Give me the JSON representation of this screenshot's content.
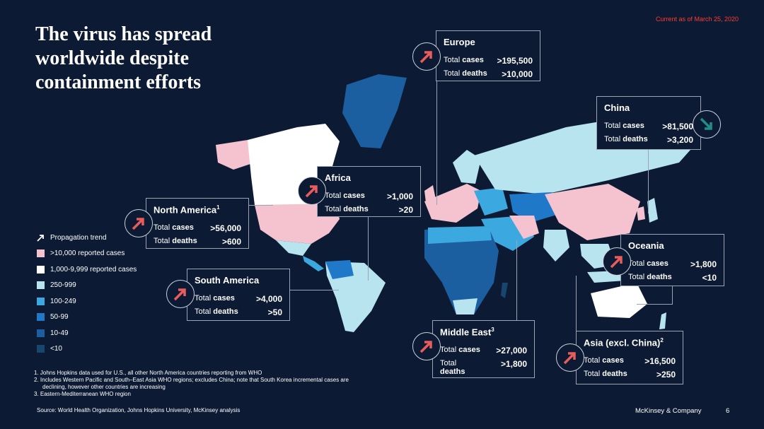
{
  "date_label": "Current as of March 25, 2020",
  "title": "The virus has spread worldwide despite containment efforts",
  "colors": {
    "background": "#0c1b33",
    "over_10000": "#f5c3cf",
    "range_1000_9999": "#ffffff",
    "range_250_999": "#b7e4ef",
    "range_100_249": "#3ba8e0",
    "range_50_99": "#1f78c8",
    "range_10_49": "#1b5fa0",
    "under_10": "#17466e",
    "up_arrow": "#e85c5c",
    "down_arrow": "#1f8f86"
  },
  "regions": {
    "europe": {
      "name": "Europe",
      "cases_prefix": "Total ",
      "cases_label": "cases",
      "cases_value": ">195,500",
      "deaths_prefix": "Total ",
      "deaths_label": "deaths",
      "deaths_value": ">10,000",
      "trend_icon": "arrow-up-icon"
    },
    "china": {
      "name": "China",
      "cases_prefix": "Total ",
      "cases_label": "cases",
      "cases_value": ">81,500",
      "deaths_prefix": "Total ",
      "deaths_label": "deaths",
      "deaths_value": ">3,200",
      "trend_icon": "arrow-down-icon"
    },
    "africa": {
      "name": "Africa",
      "cases_prefix": "Total ",
      "cases_label": "cases",
      "cases_value": ">1,000",
      "deaths_prefix": "Total ",
      "deaths_label": "deaths",
      "deaths_value": ">20",
      "trend_icon": "arrow-up-icon"
    },
    "north_america": {
      "name": "North America",
      "sup": "1",
      "cases_prefix": "Total ",
      "cases_label": "cases",
      "cases_value": ">56,000",
      "deaths_prefix": "Total ",
      "deaths_label": "deaths",
      "deaths_value": ">600",
      "trend_icon": "arrow-up-icon"
    },
    "south_america": {
      "name": "South America",
      "cases_prefix": "Total ",
      "cases_label": "cases",
      "cases_value": ">4,000",
      "deaths_prefix": "Total ",
      "deaths_label": "deaths",
      "deaths_value": ">50",
      "trend_icon": "arrow-up-icon"
    },
    "oceania": {
      "name": "Oceania",
      "cases_prefix": "Total ",
      "cases_label": "cases",
      "cases_value": ">1,800",
      "deaths_prefix": "Total ",
      "deaths_label": "deaths",
      "deaths_value": "<10",
      "trend_icon": "arrow-up-icon"
    },
    "middle_east": {
      "name": "Middle East",
      "sup": "3",
      "cases_prefix": "Total ",
      "cases_label": "cases",
      "cases_value": ">27,000",
      "deaths_prefix": "Total ",
      "deaths_label": "deaths",
      "deaths_value": ">1,800",
      "trend_icon": "arrow-up-icon"
    },
    "asia": {
      "name": "Asia (excl. China)",
      "sup": "2",
      "cases_prefix": "Total ",
      "cases_label": "cases",
      "cases_value": ">16,500",
      "deaths_prefix": "Total ",
      "deaths_label": "deaths",
      "deaths_value": ">250",
      "trend_icon": "arrow-up-icon"
    }
  },
  "legend": {
    "trend": "Propagation trend",
    "items": [
      {
        "label": ">10,000 reported cases",
        "color": "#f5c3cf"
      },
      {
        "label": " 1,000-9,999 reported cases",
        "color": "#ffffff"
      },
      {
        "label": "250-999",
        "color": "#b7e4ef"
      },
      {
        "label": "100-249",
        "color": "#3ba8e0"
      },
      {
        "label": "50-99",
        "color": "#1f78c8"
      },
      {
        "label": "10-49",
        "color": "#1b5fa0"
      },
      {
        "label": "<10",
        "color": "#17466e"
      }
    ]
  },
  "footnotes": [
    "1. Johns Hopkins data used for U.S., all other North America countries reporting from WHO",
    "2. Includes Western Pacific and South–East Asia WHO regions; excludes China; note that South Korea incremental cases are",
    "    declining, however other countries are increasing",
    "3. Eastern-Mediterranean WHO region"
  ],
  "source": "Source: World Health Organization, Johns Hopkins University, McKinsey analysis",
  "brand": "McKinsey & Company",
  "page_number": "6"
}
